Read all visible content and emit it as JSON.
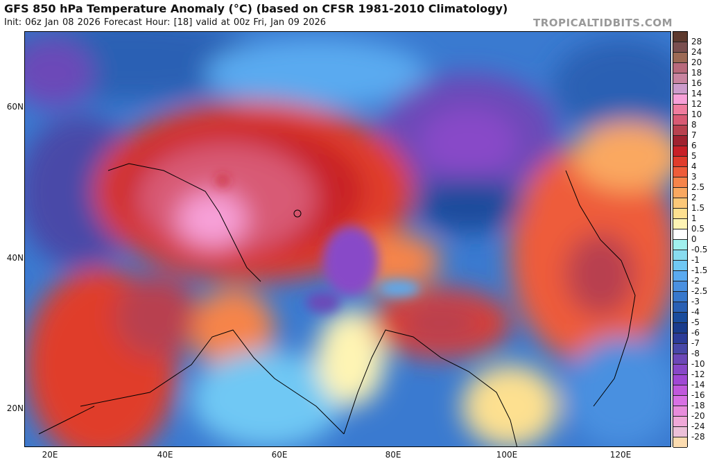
{
  "header": {
    "title": "GFS 850 hPa Temperature Anomaly (°C) (based on CFSR 1981-2010 Climatology)",
    "subtitle": "Init: 06z Jan 08 2026   Forecast Hour: [18]   valid at 00z Fri, Jan 09 2026",
    "brand": "TROPICALTIDBITS.COM"
  },
  "axes": {
    "lat_labels": [
      "60N",
      "40N",
      "20N"
    ],
    "lon_labels": [
      "20E",
      "40E",
      "60E",
      "80E",
      "100E",
      "120E"
    ]
  },
  "colorbar": {
    "labels": [
      "28",
      "24",
      "20",
      "18",
      "16",
      "14",
      "12",
      "10",
      "8",
      "7",
      "6",
      "5",
      "4",
      "3",
      "2.5",
      "2",
      "1.5",
      "1",
      "0.5",
      "0",
      "-0.5",
      "-1",
      "-1.5",
      "-2",
      "-2.5",
      "-3",
      "-4",
      "-5",
      "-6",
      "-7",
      "-8",
      "-10",
      "-12",
      "-14",
      "-16",
      "-18",
      "-20",
      "-24",
      "-28"
    ],
    "colors": [
      "#5e3a2e",
      "#7a4f4f",
      "#9c6a55",
      "#b86a7c",
      "#c884a0",
      "#cc9ccc",
      "#f7a0d8",
      "#ef7c9e",
      "#d85a74",
      "#b8414f",
      "#a02230",
      "#c82028",
      "#e03c2c",
      "#ee5c3a",
      "#f6844a",
      "#faa860",
      "#fcc878",
      "#fde090",
      "#fef4b4",
      "#ffffff",
      "#a0f0ee",
      "#88dcf0",
      "#70c8f4",
      "#5aaaf0",
      "#4a90e0",
      "#3878cc",
      "#2a60b4",
      "#1a4c9c",
      "#1a3c8c",
      "#2c3c98",
      "#4848a8",
      "#6c48b8",
      "#8848c8",
      "#a048d4",
      "#c058dc",
      "#d870e4",
      "#e88cdc",
      "#f0a8d8",
      "#ecc0d8",
      "#fcdcb0"
    ]
  }
}
